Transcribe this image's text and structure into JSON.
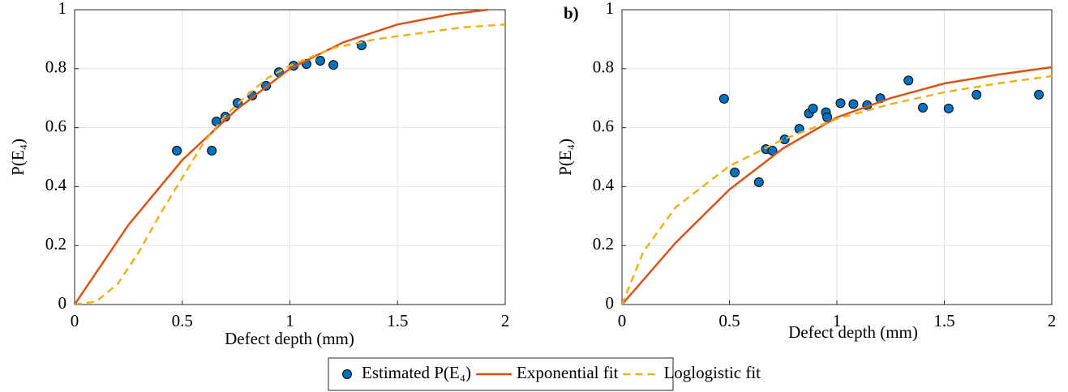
{
  "chart_data": [
    {
      "type": "line",
      "xlabel": "Defect depth (mm)",
      "ylabel": "P(E₄)",
      "xlim": [
        0,
        2
      ],
      "ylim": [
        0,
        1
      ],
      "xticks": [
        0,
        0.5,
        1,
        1.5,
        2
      ],
      "yticks": [
        0,
        0.2,
        0.4,
        0.6,
        0.8,
        1
      ],
      "grid": true,
      "series": [
        {
          "name": "Estimated P(E₄)",
          "kind": "scatter",
          "color": "#0072bd",
          "x": [
            0.475,
            0.637,
            0.659,
            0.7,
            0.757,
            0.825,
            0.889,
            0.949,
            1.017,
            1.077,
            1.141,
            1.202,
            1.333
          ],
          "values": [
            0.522,
            0.522,
            0.621,
            0.637,
            0.684,
            0.709,
            0.742,
            0.788,
            0.81,
            0.816,
            0.827,
            0.813,
            0.879
          ]
        },
        {
          "name": "Exponential fit",
          "kind": "line",
          "color": "#d95319",
          "x": [
            0,
            0.25,
            0.5,
            0.75,
            1,
            1.25,
            1.5,
            1.75,
            1.92
          ],
          "values": [
            0,
            0.27,
            0.49,
            0.66,
            0.8,
            0.89,
            0.95,
            0.985,
            1
          ]
        },
        {
          "name": "Loglogistic fit",
          "kind": "dashed",
          "color": "#edb120",
          "x": [
            0,
            0.1,
            0.2,
            0.3,
            0.4,
            0.5,
            0.6,
            0.7,
            0.8,
            0.9,
            1,
            1.2,
            1.4,
            1.6,
            1.8,
            2
          ],
          "values": [
            0,
            0.01,
            0.07,
            0.18,
            0.31,
            0.43,
            0.55,
            0.64,
            0.71,
            0.77,
            0.81,
            0.87,
            0.9,
            0.92,
            0.94,
            0.95
          ]
        }
      ]
    },
    {
      "type": "line",
      "panel": "b)",
      "xlabel": "Defect depth (mm)",
      "ylabel": "P(E₄)",
      "xlim": [
        0,
        2
      ],
      "ylim": [
        0,
        1
      ],
      "xticks": [
        0,
        0.5,
        1,
        1.5,
        2
      ],
      "yticks": [
        0,
        0.2,
        0.4,
        0.6,
        0.8,
        1
      ],
      "grid": true,
      "series": [
        {
          "name": "Estimated P(E₄)",
          "kind": "scatter",
          "color": "#0072bd",
          "x": [
            0.475,
            0.525,
            0.637,
            0.67,
            0.7,
            0.757,
            0.825,
            0.87,
            0.889,
            0.949,
            0.955,
            1.017,
            1.077,
            1.141,
            1.202,
            1.333,
            1.4,
            1.52,
            1.65,
            1.94
          ],
          "values": [
            0.698,
            0.448,
            0.415,
            0.527,
            0.522,
            0.56,
            0.596,
            0.648,
            0.665,
            0.652,
            0.635,
            0.683,
            0.68,
            0.676,
            0.7,
            0.76,
            0.668,
            0.665,
            0.712,
            0.712
          ]
        },
        {
          "name": "Exponential fit",
          "kind": "line",
          "color": "#d95319",
          "x": [
            0,
            0.25,
            0.5,
            0.75,
            1,
            1.25,
            1.5,
            1.75,
            2
          ],
          "values": [
            0,
            0.21,
            0.39,
            0.53,
            0.635,
            0.7,
            0.75,
            0.78,
            0.805
          ]
        },
        {
          "name": "Loglogistic fit",
          "kind": "dashed",
          "color": "#edb120",
          "x": [
            0,
            0.1,
            0.25,
            0.5,
            0.75,
            1,
            1.25,
            1.5,
            1.75,
            2
          ],
          "values": [
            0,
            0.18,
            0.33,
            0.47,
            0.56,
            0.63,
            0.68,
            0.72,
            0.75,
            0.775
          ]
        }
      ]
    }
  ]
}
